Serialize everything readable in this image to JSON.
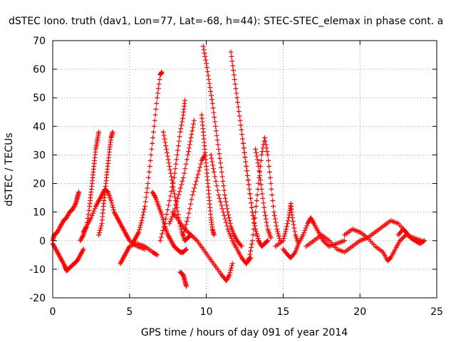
{
  "chart_data": {
    "type": "scatter",
    "title": "dSTEC Iono. truth (dav1, Lon=77, Lat=-68, h=44): STEC-STEC_elemax in phase cont. a",
    "xlabel": "GPS time / hours of day 091 of year 2014",
    "ylabel": "dSTEC  / TECUs",
    "xlim": [
      0,
      25
    ],
    "ylim": [
      -20,
      70
    ],
    "x_ticks": [
      0,
      5,
      10,
      15,
      20,
      25
    ],
    "y_ticks": [
      -20,
      -10,
      0,
      10,
      20,
      30,
      40,
      50,
      60,
      70
    ],
    "x_tick_labels": [
      "0",
      "5",
      "10",
      "15",
      "20",
      "25"
    ],
    "y_tick_labels": [
      "-20",
      "-10",
      "0",
      "10",
      "20",
      "30",
      "40",
      "50",
      "60",
      "70"
    ],
    "grid": true,
    "legend": "none",
    "marker": "plus",
    "marker_color": "#ff0000",
    "series": [
      {
        "values": [
          [
            0.0,
            -1
          ],
          [
            0.2,
            -3
          ],
          [
            0.4,
            -5
          ],
          [
            0.6,
            -7
          ],
          [
            0.8,
            -9
          ],
          [
            0.9,
            -10.5
          ],
          [
            1.0,
            -10
          ],
          [
            1.2,
            -9
          ],
          [
            1.4,
            -8
          ],
          [
            1.6,
            -7
          ],
          [
            1.8,
            -5
          ],
          [
            2.0,
            -3
          ]
        ]
      },
      {
        "values": [
          [
            0.0,
            0
          ],
          [
            0.1,
            2
          ],
          [
            0.3,
            3
          ],
          [
            0.5,
            5
          ],
          [
            0.7,
            7
          ],
          [
            0.9,
            8
          ],
          [
            1.1,
            10
          ],
          [
            1.3,
            11
          ],
          [
            1.5,
            13
          ],
          [
            1.6,
            15
          ],
          [
            1.7,
            17
          ]
        ]
      },
      {
        "values": [
          [
            1.8,
            0
          ],
          [
            2.0,
            2
          ],
          [
            2.2,
            5
          ],
          [
            2.4,
            12
          ],
          [
            2.5,
            17
          ],
          [
            2.6,
            22
          ],
          [
            2.7,
            27
          ],
          [
            2.8,
            32
          ],
          [
            2.9,
            35
          ],
          [
            3.0,
            38
          ]
        ]
      },
      {
        "values": [
          [
            2.0,
            3
          ],
          [
            2.2,
            5
          ],
          [
            2.5,
            8
          ],
          [
            2.8,
            12
          ],
          [
            3.0,
            14
          ],
          [
            3.2,
            16
          ],
          [
            3.4,
            18
          ],
          [
            3.6,
            17
          ],
          [
            3.8,
            14
          ],
          [
            4.0,
            10
          ],
          [
            4.2,
            8
          ],
          [
            4.4,
            6
          ],
          [
            4.6,
            4
          ],
          [
            4.8,
            2
          ],
          [
            5.0,
            0
          ],
          [
            5.5,
            -2
          ],
          [
            6.0,
            -3
          ]
        ]
      },
      {
        "values": [
          [
            3.0,
            2
          ],
          [
            3.2,
            6
          ],
          [
            3.3,
            12
          ],
          [
            3.4,
            17
          ],
          [
            3.5,
            22
          ],
          [
            3.6,
            27
          ],
          [
            3.7,
            32
          ],
          [
            3.8,
            36
          ],
          [
            3.9,
            38
          ]
        ]
      },
      {
        "values": [
          [
            4.4,
            -8
          ],
          [
            4.6,
            -6
          ],
          [
            4.8,
            -4
          ],
          [
            5.0,
            -2
          ],
          [
            5.5,
            -1
          ],
          [
            6.0,
            -2
          ],
          [
            6.5,
            -4
          ],
          [
            6.8,
            -5
          ]
        ]
      },
      {
        "values": [
          [
            5.2,
            -1
          ],
          [
            5.4,
            1
          ],
          [
            5.6,
            3
          ],
          [
            5.8,
            7
          ],
          [
            6.0,
            12
          ],
          [
            6.2,
            20
          ],
          [
            6.4,
            30
          ],
          [
            6.6,
            40
          ],
          [
            6.8,
            50
          ],
          [
            7.0,
            58
          ],
          [
            7.1,
            59
          ]
        ]
      },
      {
        "values": [
          [
            6.5,
            17
          ],
          [
            6.7,
            15
          ],
          [
            6.9,
            12
          ],
          [
            7.1,
            9
          ],
          [
            7.3,
            5
          ],
          [
            7.5,
            2
          ],
          [
            7.7,
            0
          ],
          [
            7.9,
            -2
          ],
          [
            8.1,
            -3
          ],
          [
            8.3,
            -4
          ],
          [
            8.5,
            -4
          ],
          [
            8.7,
            -3
          ]
        ]
      },
      {
        "values": [
          [
            7.2,
            38
          ],
          [
            7.4,
            32
          ],
          [
            7.6,
            26
          ],
          [
            7.8,
            20
          ],
          [
            8.0,
            14
          ],
          [
            8.2,
            8
          ],
          [
            8.4,
            3
          ],
          [
            8.6,
            0
          ],
          [
            8.8,
            1
          ],
          [
            9.0,
            2
          ]
        ]
      },
      {
        "values": [
          [
            7.0,
            0
          ],
          [
            7.3,
            6
          ],
          [
            7.6,
            14
          ],
          [
            7.9,
            22
          ],
          [
            8.1,
            30
          ],
          [
            8.3,
            38
          ],
          [
            8.5,
            44
          ],
          [
            8.6,
            49
          ]
        ]
      },
      {
        "values": [
          [
            7.6,
            6
          ],
          [
            7.9,
            10
          ],
          [
            8.2,
            16
          ],
          [
            8.5,
            22
          ],
          [
            8.8,
            30
          ],
          [
            9.0,
            36
          ],
          [
            9.2,
            42
          ]
        ]
      },
      {
        "values": [
          [
            8.3,
            -11
          ],
          [
            8.5,
            -12
          ],
          [
            8.6,
            -14
          ],
          [
            8.7,
            -16
          ]
        ]
      },
      {
        "values": [
          [
            8.5,
            2
          ],
          [
            8.8,
            8
          ],
          [
            9.1,
            16
          ],
          [
            9.4,
            22
          ],
          [
            9.7,
            28
          ],
          [
            9.9,
            30
          ]
        ]
      },
      {
        "values": [
          [
            7.8,
            10
          ],
          [
            8.2,
            7
          ],
          [
            8.6,
            4
          ],
          [
            9.0,
            2
          ],
          [
            9.4,
            0
          ],
          [
            9.8,
            -3
          ],
          [
            10.2,
            -6
          ],
          [
            10.6,
            -9
          ],
          [
            11.0,
            -12
          ],
          [
            11.3,
            -14
          ],
          [
            11.5,
            -12
          ],
          [
            11.7,
            -8
          ]
        ]
      },
      {
        "values": [
          [
            9.7,
            44
          ],
          [
            9.8,
            38
          ],
          [
            9.9,
            32
          ],
          [
            10.0,
            26
          ],
          [
            10.1,
            20
          ],
          [
            10.2,
            14
          ],
          [
            10.3,
            8
          ],
          [
            10.4,
            4
          ],
          [
            10.5,
            2
          ]
        ]
      },
      {
        "values": [
          [
            9.8,
            68
          ],
          [
            10.0,
            62
          ],
          [
            10.2,
            55
          ],
          [
            10.4,
            48
          ],
          [
            10.6,
            40
          ],
          [
            10.8,
            32
          ],
          [
            11.0,
            24
          ],
          [
            11.2,
            16
          ],
          [
            11.4,
            10
          ],
          [
            11.6,
            5
          ],
          [
            11.8,
            2
          ],
          [
            12.0,
            0
          ],
          [
            12.3,
            -2
          ]
        ]
      },
      {
        "values": [
          [
            10.3,
            30
          ],
          [
            10.5,
            24
          ],
          [
            10.8,
            16
          ],
          [
            11.1,
            10
          ],
          [
            11.4,
            4
          ],
          [
            11.7,
            0
          ],
          [
            12.0,
            -3
          ],
          [
            12.3,
            -6
          ],
          [
            12.6,
            -8
          ],
          [
            12.9,
            -6
          ]
        ]
      },
      {
        "values": [
          [
            11.6,
            66
          ],
          [
            11.8,
            58
          ],
          [
            12.0,
            50
          ],
          [
            12.2,
            42
          ],
          [
            12.4,
            34
          ],
          [
            12.6,
            26
          ],
          [
            12.8,
            18
          ],
          [
            13.0,
            10
          ],
          [
            13.2,
            4
          ],
          [
            13.4,
            0
          ]
        ]
      },
      {
        "values": [
          [
            12.4,
            34
          ],
          [
            12.6,
            26
          ],
          [
            12.8,
            18
          ],
          [
            13.0,
            10
          ],
          [
            13.2,
            4
          ],
          [
            13.4,
            0
          ],
          [
            13.6,
            -2
          ],
          [
            13.8,
            -1
          ],
          [
            14.0,
            0
          ]
        ]
      },
      {
        "values": [
          [
            12.6,
            -8
          ],
          [
            12.8,
            -6
          ],
          [
            13.0,
            0
          ],
          [
            13.2,
            10
          ],
          [
            13.4,
            20
          ],
          [
            13.6,
            30
          ],
          [
            13.8,
            36
          ],
          [
            14.0,
            30
          ],
          [
            14.2,
            20
          ],
          [
            14.4,
            10
          ],
          [
            14.6,
            4
          ],
          [
            14.8,
            0
          ]
        ]
      },
      {
        "values": [
          [
            13.2,
            32
          ],
          [
            13.4,
            26
          ],
          [
            13.6,
            18
          ],
          [
            13.8,
            10
          ],
          [
            14.0,
            4
          ],
          [
            14.2,
            1
          ]
        ]
      },
      {
        "values": [
          [
            14.5,
            -2
          ],
          [
            15.0,
            0
          ],
          [
            15.2,
            4
          ],
          [
            15.4,
            9
          ],
          [
            15.5,
            13
          ],
          [
            15.6,
            8
          ],
          [
            15.8,
            2
          ],
          [
            16.0,
            -1
          ]
        ]
      },
      {
        "values": [
          [
            15.0,
            -3
          ],
          [
            15.3,
            -5
          ],
          [
            15.5,
            -6
          ],
          [
            15.8,
            -4
          ],
          [
            16.0,
            -1
          ],
          [
            16.3,
            2
          ],
          [
            16.6,
            6
          ],
          [
            16.8,
            8
          ],
          [
            17.0,
            6
          ],
          [
            17.3,
            3
          ],
          [
            17.6,
            0
          ],
          [
            18.0,
            -2
          ],
          [
            18.5,
            -1
          ],
          [
            19.0,
            0
          ]
        ]
      },
      {
        "values": [
          [
            16.5,
            -2
          ],
          [
            17.0,
            0
          ],
          [
            17.5,
            2
          ],
          [
            18.0,
            0
          ],
          [
            18.5,
            -3
          ],
          [
            19.0,
            -4
          ],
          [
            19.5,
            -2
          ],
          [
            20.0,
            0
          ],
          [
            20.5,
            1
          ],
          [
            21.0,
            3
          ],
          [
            21.5,
            5
          ],
          [
            22.0,
            7
          ],
          [
            22.5,
            6
          ],
          [
            23.0,
            3
          ]
        ]
      },
      {
        "values": [
          [
            19.0,
            2
          ],
          [
            19.5,
            4
          ],
          [
            20.0,
            3
          ],
          [
            20.5,
            1
          ],
          [
            21.0,
            -2
          ],
          [
            21.5,
            -4
          ],
          [
            21.8,
            -7
          ],
          [
            22.0,
            -6
          ],
          [
            22.3,
            -3
          ],
          [
            22.6,
            0
          ],
          [
            23.0,
            2
          ],
          [
            23.5,
            1
          ],
          [
            24.0,
            0
          ]
        ]
      },
      {
        "values": [
          [
            22.5,
            2
          ],
          [
            22.8,
            4
          ],
          [
            23.0,
            3
          ],
          [
            23.3,
            1
          ],
          [
            23.6,
            0
          ],
          [
            23.9,
            -1
          ],
          [
            24.2,
            0
          ]
        ]
      }
    ]
  }
}
